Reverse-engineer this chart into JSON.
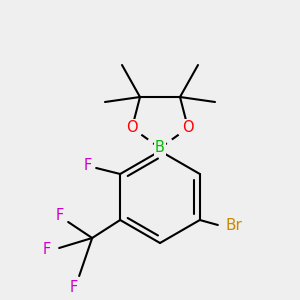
{
  "bg_color": "#efefef",
  "atom_colors": {
    "C": "#000000",
    "O": "#ff0000",
    "B": "#00bb00",
    "F": "#cc00cc",
    "Br": "#cc8800"
  },
  "bond_color": "#000000",
  "bond_width": 1.5,
  "font_size": 10.5,
  "scale": 1.0
}
